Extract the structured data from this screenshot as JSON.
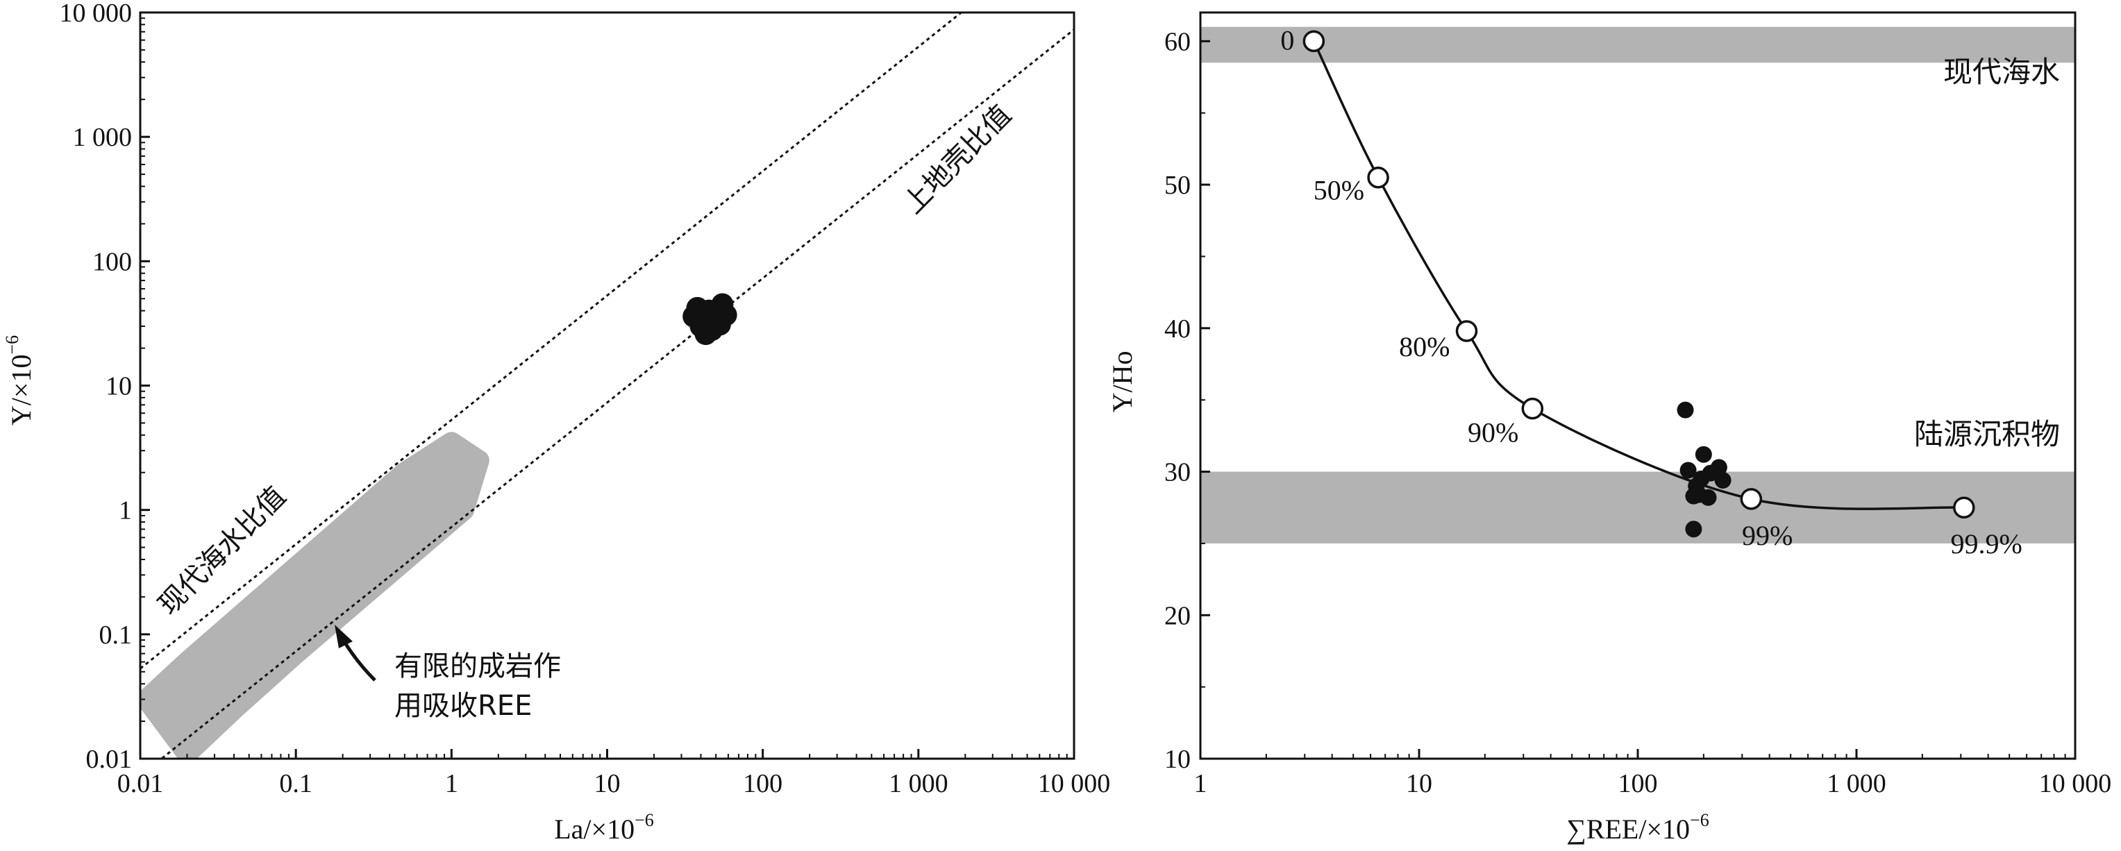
{
  "colors": {
    "band": "#b3b3b3",
    "ink": "#111111",
    "background": "#ffffff"
  },
  "chart_data": [
    {
      "type": "scatter",
      "panel": "left",
      "xlabel": "La/×10",
      "xlabel_sup": "−6",
      "ylabel": "Y/×10",
      "ylabel_sup": "−6",
      "xscale": "log",
      "yscale": "log",
      "xlim": [
        0.01,
        10000
      ],
      "ylim": [
        0.01,
        10000
      ],
      "xticks": [
        0.01,
        0.1,
        1,
        10,
        100,
        1000,
        10000
      ],
      "xtick_labels": [
        "0.01",
        "0.1",
        "1",
        "10",
        "100",
        "1 000",
        "10 000"
      ],
      "yticks": [
        0.01,
        0.1,
        1,
        10,
        100,
        1000,
        10000
      ],
      "ytick_labels": [
        "0.01",
        "0.1",
        "1",
        "10",
        "100",
        "1 000",
        "10 000"
      ],
      "grid": false,
      "reference_lines": [
        {
          "label": "现代海水比值",
          "ratio_Y_over_La": 5.3,
          "style": "dotted"
        },
        {
          "label": "上地壳比值",
          "ratio_Y_over_La": 0.73,
          "style": "dotted"
        }
      ],
      "shaded_region": {
        "label": "有限的成岩作用吸收REE",
        "label_lines": [
          "有限的成岩作",
          "用吸收REE"
        ],
        "outline": [
          [
            0.011,
            0.03
          ],
          [
            0.02,
            0.06
          ],
          [
            0.5,
            2.0
          ],
          [
            1.0,
            3.5
          ],
          [
            1.5,
            2.5
          ],
          [
            1.2,
            1.0
          ],
          [
            0.1,
            0.07
          ],
          [
            0.04,
            0.025
          ],
          [
            0.02,
            0.011
          ]
        ]
      },
      "points": [
        [
          38,
          42
        ],
        [
          45,
          40
        ],
        [
          55,
          45
        ],
        [
          42,
          33
        ],
        [
          50,
          35
        ],
        [
          58,
          37
        ],
        [
          40,
          30
        ],
        [
          47,
          28
        ],
        [
          53,
          31
        ],
        [
          43,
          26
        ],
        [
          49,
          36
        ],
        [
          36,
          36
        ],
        [
          52,
          40
        ]
      ]
    },
    {
      "type": "line+scatter",
      "panel": "right",
      "xlabel": "∑REE/×10",
      "xlabel_sup": "−6",
      "ylabel": "Y/Ho",
      "xscale": "log",
      "xlim": [
        1,
        10000
      ],
      "ylim": [
        10,
        62
      ],
      "xticks": [
        1,
        10,
        100,
        1000,
        10000
      ],
      "xtick_labels": [
        "1",
        "10",
        "100",
        "1 000",
        "10 000"
      ],
      "yticks": [
        10,
        20,
        30,
        40,
        50,
        60
      ],
      "ytick_labels": [
        "10",
        "20",
        "30",
        "40",
        "50",
        "60"
      ],
      "grid": false,
      "bands": [
        {
          "label": "现代海水",
          "y_range": [
            58.5,
            61
          ]
        },
        {
          "label": "陆源沉积物",
          "y_range": [
            25,
            30
          ]
        }
      ],
      "mixing_curve": {
        "points": [
          {
            "x": 3.3,
            "y": 60,
            "label": "0"
          },
          {
            "x": 6.5,
            "y": 50.5,
            "label": "50%"
          },
          {
            "x": 16.5,
            "y": 39.8,
            "label": "80%"
          },
          {
            "x": 33,
            "y": 34.4,
            "label": "90%"
          },
          {
            "x": 330,
            "y": 28.1,
            "label": "99%"
          },
          {
            "x": 3100,
            "y": 27.5,
            "label": "99.9%"
          }
        ]
      },
      "samples": [
        [
          165,
          34.3
        ],
        [
          170,
          30.1
        ],
        [
          185,
          29.0
        ],
        [
          200,
          31.2
        ],
        [
          215,
          29.9
        ],
        [
          235,
          30.3
        ],
        [
          190,
          28.4
        ],
        [
          180,
          28.3
        ],
        [
          210,
          28.2
        ],
        [
          245,
          29.4
        ],
        [
          180,
          26.0
        ],
        [
          195,
          29.5
        ]
      ]
    }
  ]
}
